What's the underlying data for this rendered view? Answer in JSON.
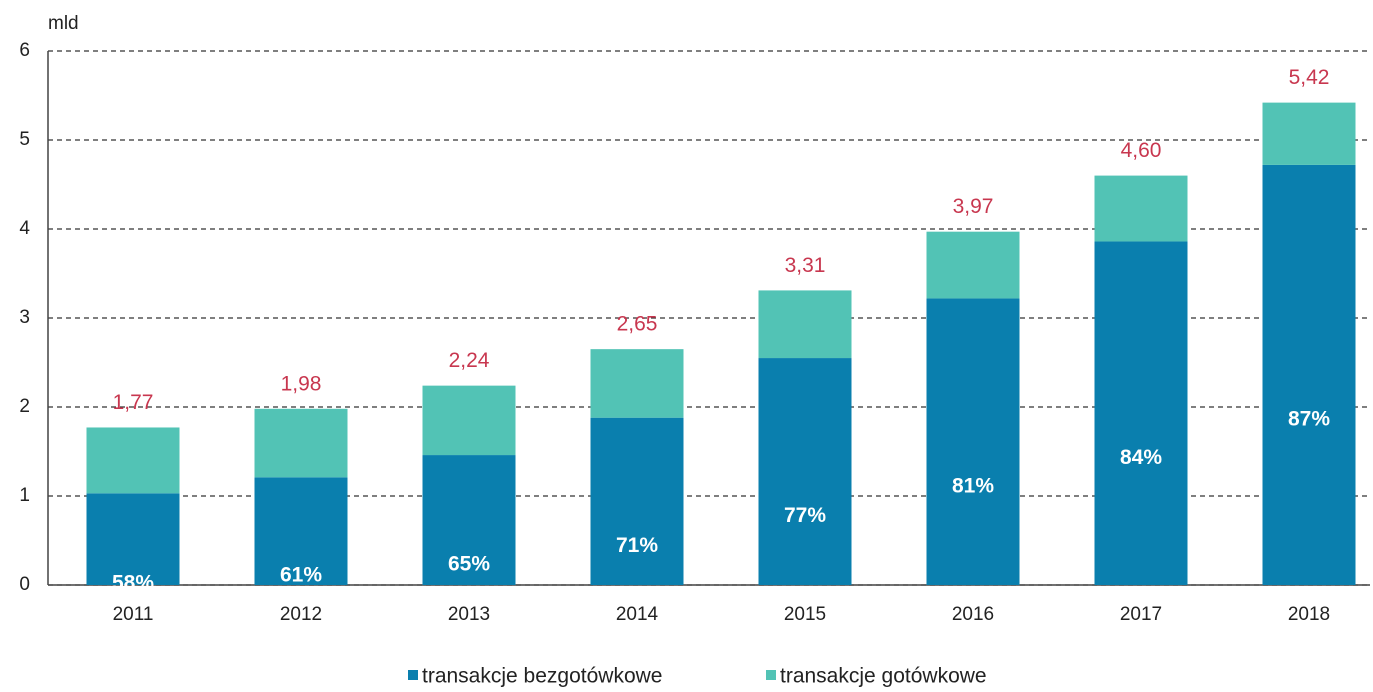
{
  "chart_data": {
    "type": "stacked_bar",
    "y_label": "mld",
    "categories": [
      "2011",
      "2012",
      "2013",
      "2014",
      "2015",
      "2016",
      "2017",
      "2018"
    ],
    "series": [
      {
        "name": "transakcje bezgotówkowe",
        "color": "#0a7fae",
        "values": [
          1.03,
          1.21,
          1.46,
          1.88,
          2.55,
          3.22,
          3.86,
          4.72
        ],
        "value_labels": [
          "58%",
          "61%",
          "65%",
          "71%",
          "77%",
          "81%",
          "84%",
          "87%"
        ]
      },
      {
        "name": "transakcje gotówkowe",
        "color": "#52c3b5",
        "values": [
          0.74,
          0.77,
          0.78,
          0.77,
          0.76,
          0.75,
          0.74,
          0.7
        ]
      }
    ],
    "totals": [
      {
        "value": 1.77,
        "label": "1,77"
      },
      {
        "value": 1.98,
        "label": "1,98"
      },
      {
        "value": 2.24,
        "label": "2,24"
      },
      {
        "value": 2.65,
        "label": "2,65"
      },
      {
        "value": 3.31,
        "label": "3,31"
      },
      {
        "value": 3.97,
        "label": "3,97"
      },
      {
        "value": 4.6,
        "label": "4,60"
      },
      {
        "value": 5.42,
        "label": "5,42"
      }
    ],
    "total_color": "#c8374f",
    "ylim": [
      0,
      6
    ],
    "yticks": [
      0,
      1,
      2,
      3,
      4,
      5,
      6
    ],
    "grid": true,
    "legend": "bottom"
  }
}
